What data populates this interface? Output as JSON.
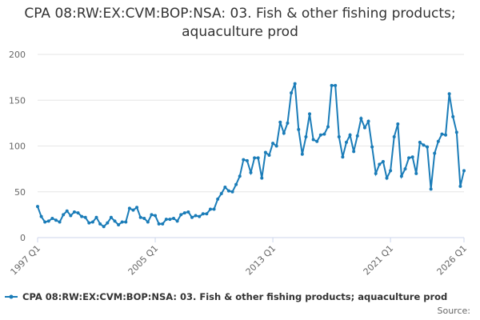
{
  "chart_data": {
    "type": "line",
    "title": "CPA 08:RW:EX:CVM:BOP:NSA: 03. Fish & other fishing products; aquaculture prod",
    "source": "Source:",
    "categories": [
      "1997 Q1",
      null,
      null,
      null,
      null,
      null,
      null,
      null,
      null,
      null,
      null,
      null,
      null,
      null,
      null,
      null,
      null,
      null,
      null,
      null,
      null,
      null,
      null,
      null,
      null,
      null,
      null,
      null,
      null,
      null,
      null,
      null,
      "2005 Q1",
      null,
      null,
      null,
      null,
      null,
      null,
      null,
      null,
      null,
      null,
      null,
      null,
      null,
      null,
      null,
      null,
      null,
      null,
      null,
      null,
      null,
      null,
      null,
      null,
      null,
      null,
      null,
      null,
      null,
      null,
      null,
      "2013 Q1",
      null,
      null,
      null,
      null,
      null,
      null,
      null,
      null,
      null,
      null,
      null,
      null,
      null,
      null,
      null,
      null,
      null,
      null,
      null,
      null,
      null,
      null,
      null,
      null,
      null,
      null,
      null,
      null,
      null,
      null,
      null,
      "2021 Q1",
      null,
      null,
      null,
      null,
      null,
      null,
      null,
      null,
      null,
      null,
      null,
      null,
      null,
      null,
      null,
      null,
      null,
      null,
      null,
      "2026 Q1"
    ],
    "series": [
      {
        "name": "CPA 08:RW:EX:CVM:BOP:NSA: 03. Fish & other fishing products; aquaculture prod",
        "color": "#1a7cb8",
        "values": [
          34,
          23,
          17,
          18,
          21,
          19,
          17,
          25,
          29,
          24,
          28,
          27,
          23,
          22,
          16,
          17,
          22,
          15,
          12,
          16,
          22,
          18,
          14,
          17,
          17,
          32,
          30,
          33,
          22,
          21,
          17,
          25,
          24,
          15,
          15,
          20,
          20,
          21,
          18,
          25,
          27,
          28,
          22,
          24,
          23,
          26,
          26,
          31,
          31,
          42,
          48,
          55,
          51,
          50,
          58,
          67,
          85,
          84,
          71,
          87,
          87,
          65,
          93,
          90,
          103,
          100,
          126,
          114,
          125,
          158,
          168,
          118,
          91,
          110,
          135,
          107,
          105,
          112,
          113,
          121,
          166,
          166,
          110,
          88,
          104,
          112,
          94,
          111,
          130,
          120,
          127,
          99,
          70,
          80,
          83,
          65,
          73,
          110,
          124,
          67,
          75,
          87,
          88,
          70,
          104,
          101,
          99,
          53,
          92,
          105,
          113,
          112,
          157,
          132,
          115,
          56,
          73
        ]
      }
    ],
    "ylim": [
      0,
      200
    ],
    "yticks": [
      0,
      50,
      100,
      150,
      200
    ],
    "grid": true
  }
}
